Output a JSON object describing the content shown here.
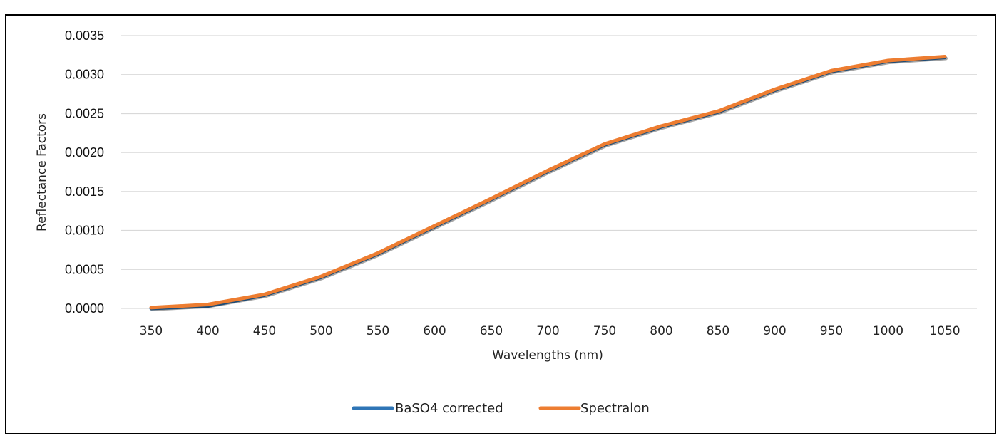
{
  "chart_data": {
    "type": "line",
    "title": "",
    "xlabel": "Wavelengths (nm)",
    "ylabel": "Reflectance Factors",
    "x": [
      350,
      400,
      450,
      500,
      550,
      600,
      650,
      700,
      750,
      800,
      850,
      900,
      950,
      1000,
      1050
    ],
    "x_tick_labels": [
      "350",
      "400",
      "450",
      "500",
      "550",
      "600",
      "650",
      "700",
      "750",
      "800",
      "850",
      "900",
      "950",
      "1000",
      "1050"
    ],
    "y_tick_labels": [
      "0.0000",
      "0.0005",
      "0.0010",
      "0.0015",
      "0.0020",
      "0.0025",
      "0.0030",
      "0.0035"
    ],
    "y_ticks": [
      0,
      0.0005,
      0.001,
      0.0015,
      0.002,
      0.0025,
      0.003,
      0.0035
    ],
    "ylim": [
      0,
      0.0035
    ],
    "grid": true,
    "legend_position": "bottom",
    "series": [
      {
        "name": "BaSO4 corrected",
        "color": "#2E75B6",
        "values": [
          0.0,
          3e-05,
          0.00017,
          0.0004,
          0.0007,
          0.00105,
          0.0014,
          0.00176,
          0.0021,
          0.00233,
          0.00252,
          0.0028,
          0.00304,
          0.00317,
          0.00322
        ]
      },
      {
        "name": "Spectralon",
        "color": "#ED7D31",
        "values": [
          1e-05,
          5e-05,
          0.00018,
          0.00041,
          0.00071,
          0.00106,
          0.00141,
          0.00177,
          0.00211,
          0.00234,
          0.00253,
          0.00281,
          0.00305,
          0.00318,
          0.00323
        ]
      }
    ]
  }
}
